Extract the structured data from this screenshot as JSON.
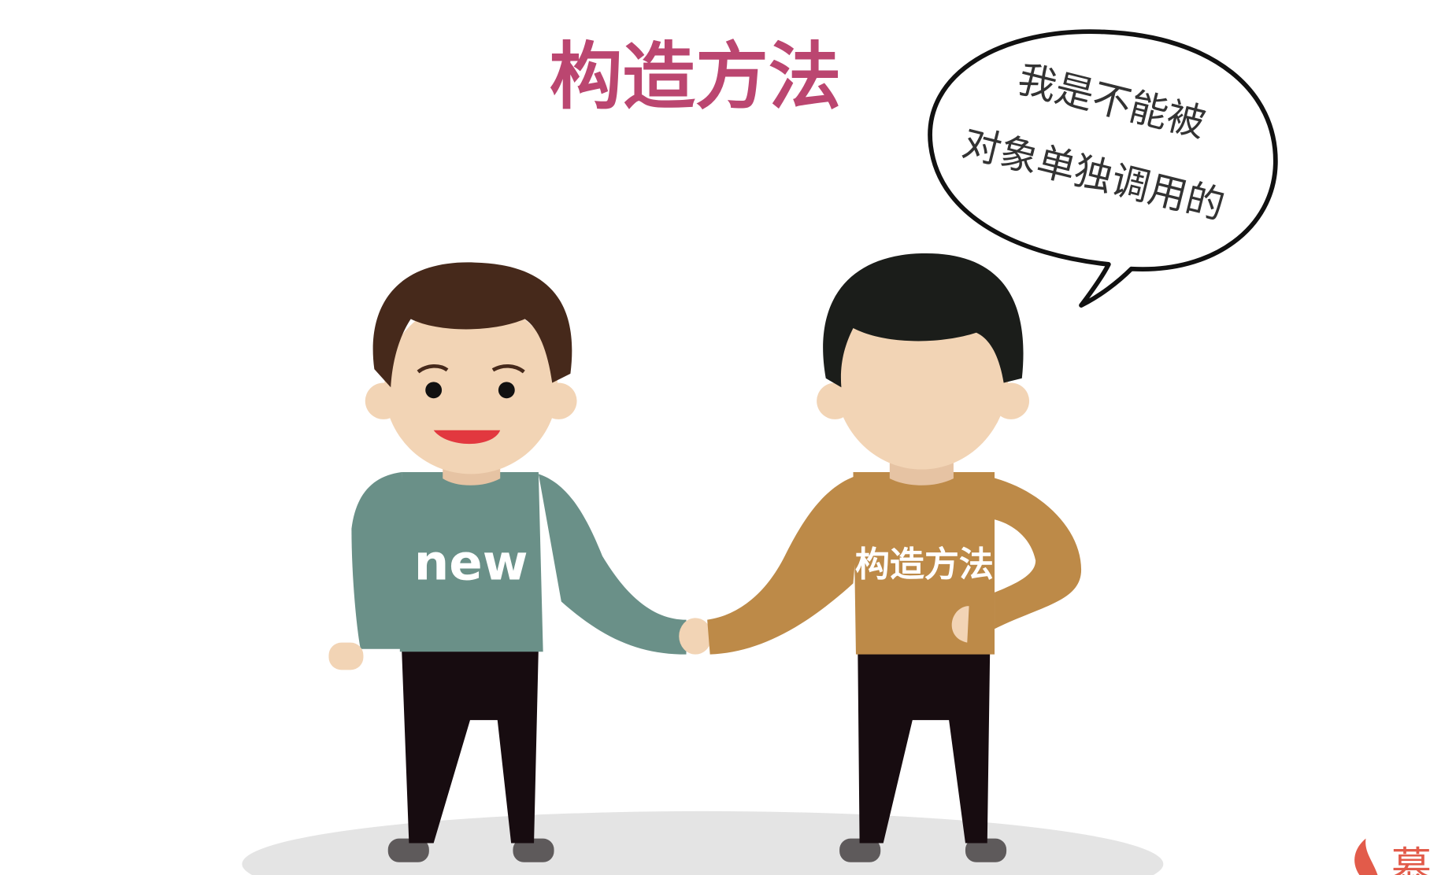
{
  "title": "构造方法",
  "speech_bubble": {
    "lines": [
      "我是不能被",
      "对象单独调用的"
    ]
  },
  "characters": [
    {
      "shirt_label": "new"
    },
    {
      "shirt_label": "构造方法"
    }
  ],
  "watermark": "慕"
}
